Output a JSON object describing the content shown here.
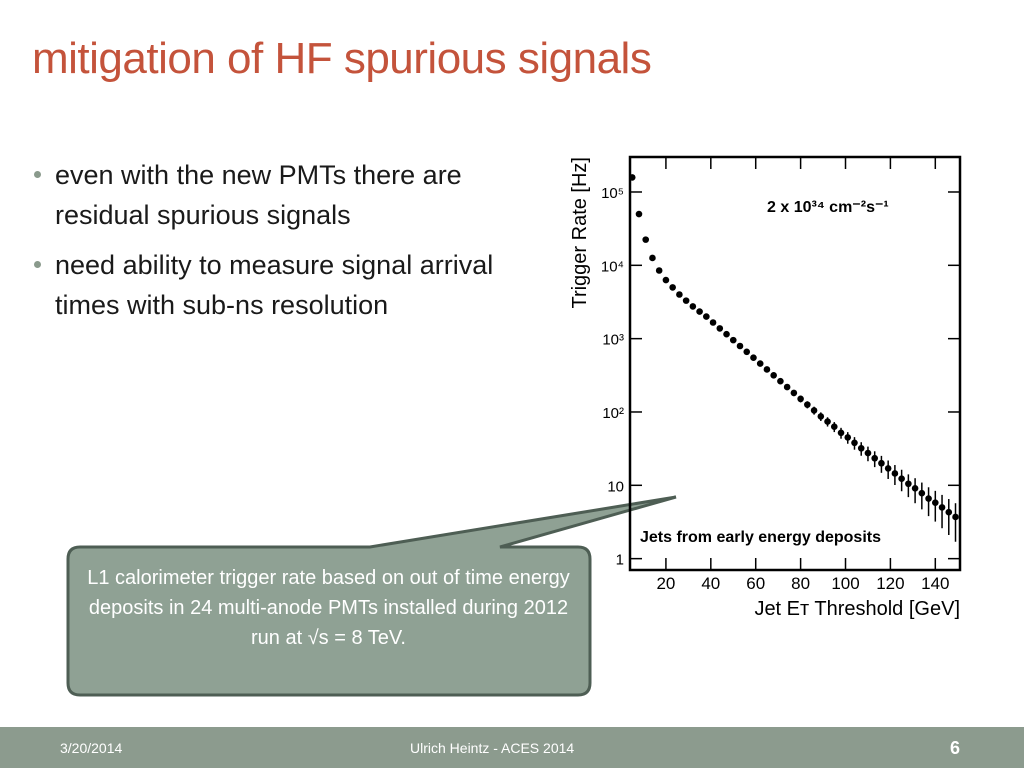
{
  "header": {
    "title": "mitigation of HF spurious signals"
  },
  "bullets": [
    "even with the new PMTs there are residual spurious signals",
    "need ability to measure signal arrival times with sub-ns resolution"
  ],
  "callout": {
    "text": "L1 calorimeter trigger rate based on out of time energy deposits in 24 multi-anode PMTs installed during 2012 run at √s = 8 TeV."
  },
  "footer": {
    "date": "3/20/2014",
    "author": "Ulrich Heintz - ACES 2014",
    "page": "6"
  },
  "chart_data": {
    "type": "scatter",
    "log_y": true,
    "color": "#000000",
    "xlabel": "Jet Eᴛ Threshold [GeV]",
    "ylabel": "Trigger Rate [Hz]",
    "annotations": [
      "2 x 10³⁴ cm⁻²s⁻¹",
      "Jets from early energy deposits"
    ],
    "x": [
      5,
      8,
      11,
      14,
      17,
      20,
      23,
      26,
      29,
      32,
      35,
      38,
      41,
      44,
      47,
      50,
      53,
      56,
      59,
      62,
      65,
      68,
      71,
      74,
      77,
      80,
      83,
      86,
      89,
      92,
      95,
      98,
      101,
      104,
      107,
      110,
      113,
      116,
      119,
      122,
      125,
      128,
      131,
      134,
      137,
      140,
      143,
      146,
      149
    ],
    "values": [
      158000,
      50000,
      22400,
      12600,
      8500,
      6300,
      5000,
      4000,
      3300,
      2750,
      2340,
      2000,
      1660,
      1380,
      1150,
      955,
      794,
      661,
      550,
      457,
      380,
      316,
      263,
      219,
      182,
      151,
      126,
      105,
      87,
      74,
      63,
      52,
      45,
      38,
      32,
      27.5,
      23.4,
      20,
      17,
      14.5,
      12.3,
      10.5,
      9.1,
      7.8,
      6.6,
      5.8,
      5,
      4.3,
      3.7
    ],
    "errors": [
      730,
      385,
      250,
      180,
      145,
      122,
      108,
      96,
      86,
      78,
      71,
      65,
      59,
      53,
      48,
      44,
      39,
      36,
      32,
      29,
      26,
      24,
      21,
      19,
      17.5,
      16,
      14,
      13,
      11.7,
      10.7,
      9.8,
      8.8,
      8.1,
      7.4,
      6.7,
      6.2,
      5.7,
      5.2,
      4.8,
      4.4,
      4,
      3.6,
      3.4,
      3.1,
      2.8,
      2.6,
      2.4,
      2.2,
      2
    ],
    "xlim": [
      4,
      151
    ],
    "ylim": [
      0.7,
      300000
    ],
    "xticks": [
      20,
      40,
      60,
      80,
      100,
      120,
      140
    ],
    "yticks": [
      1,
      10,
      {
        "value": 100,
        "label": "10²"
      },
      {
        "value": 1000,
        "label": "10³"
      },
      {
        "value": 10000,
        "label": "10⁴"
      },
      {
        "value": 100000,
        "label": "10⁵"
      }
    ]
  }
}
